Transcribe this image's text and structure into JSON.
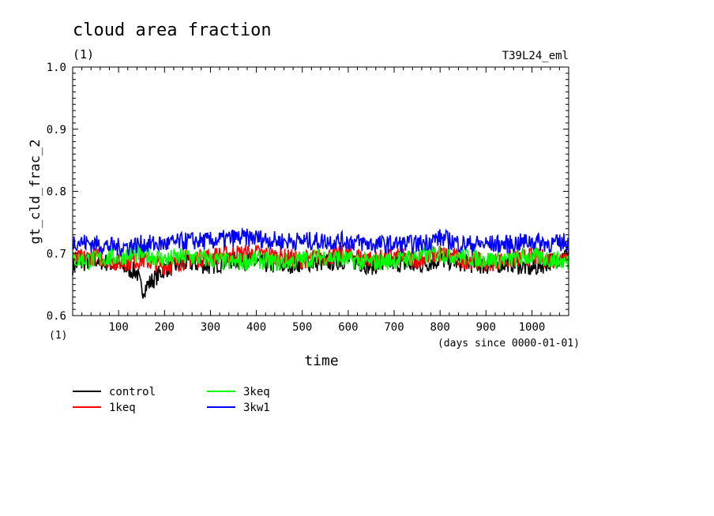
{
  "chart_data": {
    "type": "line",
    "title": "cloud area fraction",
    "subtitle": "(1)",
    "run_label": "T39L24_eml",
    "ylabel": "gt_cld_frac_2",
    "xlabel": "time",
    "x_unit_label": "(days since 0000-01-01)",
    "y_unit_label": "(1)",
    "xlim": [
      0,
      1080
    ],
    "ylim": [
      0.6,
      1.0
    ],
    "x_ticks": [
      "100",
      "200",
      "300",
      "400",
      "500",
      "600",
      "700",
      "800",
      "900",
      "1000"
    ],
    "y_ticks": [
      "0.6",
      "0.7",
      "0.8",
      "0.9",
      "1.0"
    ],
    "legend_placement": "bottom-left",
    "series": [
      {
        "name": "control",
        "color": "#000000",
        "x": [
          0,
          50,
          100,
          140,
          150,
          200,
          250,
          300,
          350,
          400,
          450,
          500,
          550,
          600,
          650,
          700,
          750,
          800,
          850,
          900,
          950,
          1000,
          1050,
          1080
        ],
        "values": [
          0.68,
          0.69,
          0.68,
          0.67,
          0.64,
          0.675,
          0.685,
          0.68,
          0.69,
          0.685,
          0.68,
          0.685,
          0.685,
          0.69,
          0.68,
          0.685,
          0.68,
          0.69,
          0.685,
          0.68,
          0.685,
          0.675,
          0.69,
          0.7
        ]
      },
      {
        "name": "1keq",
        "color": "#ff0000",
        "x": [
          0,
          50,
          100,
          150,
          200,
          250,
          300,
          350,
          400,
          450,
          500,
          550,
          600,
          650,
          700,
          750,
          800,
          850,
          900,
          950,
          1000,
          1050,
          1080
        ],
        "values": [
          0.69,
          0.695,
          0.685,
          0.69,
          0.68,
          0.69,
          0.695,
          0.7,
          0.7,
          0.695,
          0.69,
          0.695,
          0.7,
          0.69,
          0.695,
          0.69,
          0.7,
          0.69,
          0.685,
          0.69,
          0.695,
          0.69,
          0.7
        ]
      },
      {
        "name": "3keq",
        "color": "#00ff00",
        "x": [
          0,
          50,
          100,
          150,
          200,
          250,
          300,
          350,
          400,
          450,
          500,
          550,
          600,
          650,
          700,
          750,
          800,
          850,
          900,
          950,
          1000,
          1050,
          1080
        ],
        "values": [
          0.69,
          0.69,
          0.695,
          0.7,
          0.69,
          0.695,
          0.69,
          0.685,
          0.69,
          0.685,
          0.69,
          0.695,
          0.69,
          0.685,
          0.69,
          0.695,
          0.7,
          0.695,
          0.69,
          0.69,
          0.695,
          0.69,
          0.685
        ]
      },
      {
        "name": "3kw1",
        "color": "#0000ff",
        "x": [
          0,
          50,
          100,
          150,
          200,
          250,
          300,
          350,
          400,
          450,
          500,
          550,
          600,
          650,
          700,
          750,
          800,
          850,
          900,
          950,
          1000,
          1050,
          1080
        ],
        "values": [
          0.72,
          0.715,
          0.71,
          0.715,
          0.715,
          0.72,
          0.72,
          0.725,
          0.725,
          0.72,
          0.72,
          0.72,
          0.72,
          0.715,
          0.715,
          0.715,
          0.725,
          0.715,
          0.715,
          0.715,
          0.72,
          0.715,
          0.72
        ]
      }
    ]
  }
}
